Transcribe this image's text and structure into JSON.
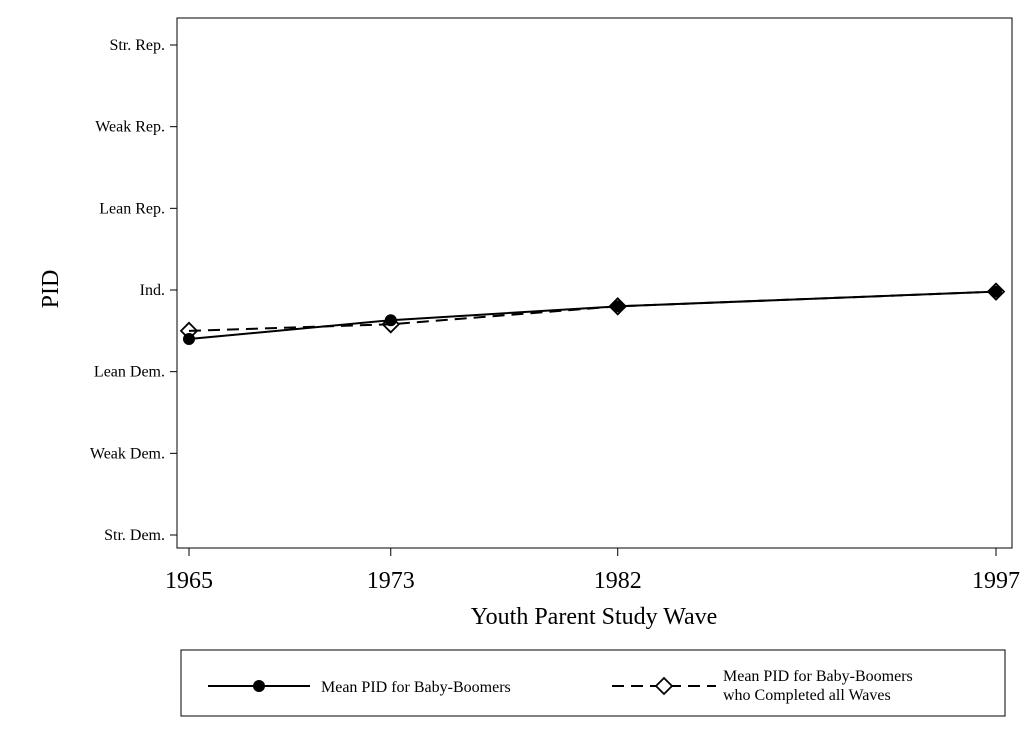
{
  "chart_data": {
    "type": "line",
    "title": "",
    "xlabel": "Youth Parent Study Wave",
    "ylabel": "PID",
    "x": [
      1965,
      1973,
      1982,
      1997
    ],
    "xlim": [
      1965,
      1997
    ],
    "x_tick_labels": [
      "1965",
      "1973",
      "1982",
      "1997"
    ],
    "ylim": [
      0,
      6
    ],
    "y_ticks": [
      0,
      1,
      2,
      3,
      4,
      5,
      6
    ],
    "y_tick_labels": [
      "Str. Dem.",
      "Weak Dem.",
      "Lean Dem.",
      "Ind.",
      "Lean Rep.",
      "Weak Rep.",
      "Str. Rep."
    ],
    "grid": false,
    "legend_position": "bottom",
    "series": [
      {
        "name": "Mean PID for Baby-Boomers",
        "values": [
          2.4,
          2.63,
          2.8,
          2.98
        ],
        "style": "solid",
        "marker": "circle-filled",
        "color": "#000000"
      },
      {
        "name_lines": [
          "Mean PID for Baby-Boomers",
          "who Completed all Waves"
        ],
        "values": [
          2.5,
          2.58,
          2.8,
          2.98
        ],
        "style": "dashed",
        "marker": "diamond-open",
        "color": "#000000"
      }
    ]
  }
}
